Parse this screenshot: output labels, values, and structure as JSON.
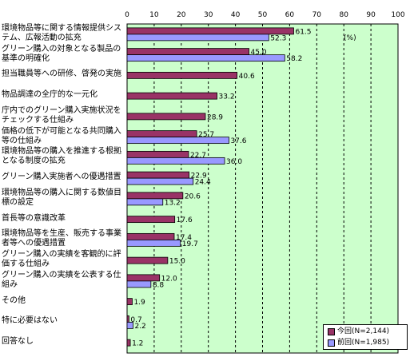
{
  "chart_data": {
    "type": "bar",
    "orientation": "horizontal",
    "unit_label": "(%)",
    "xlim": [
      0,
      100
    ],
    "x_ticks": [
      "0",
      "10",
      "20",
      "30",
      "40",
      "50",
      "60",
      "70",
      "80",
      "90",
      "100"
    ],
    "grid": true,
    "legend_position": "bottom-right",
    "categories": [
      "環境物品等に関する情報提供システム、広報活動の拡充",
      "グリーン購入の対象となる製品の基準の明確化",
      "担当職員等への研修、啓発の実施",
      "物品調達の全庁的な一元化",
      "庁内でのグリーン購入実施状況をチェックする仕組み",
      "価格の低下が可能となる共同購入等の仕組み",
      "環境物品等の購入を推進する根拠となる制度の拡充",
      "グリーン購入実施者への優遇措置",
      "環境物品等の購入に関する数値目標の設定",
      "首長等の意識改革",
      "環境物品等を生産、販売する事業者等への優遇措置",
      "グリーン購入の実績を客観的に評価する仕組み",
      "グリーン購入の実績を公表する仕組み",
      "その他",
      "特に必要はない",
      "回答なし"
    ],
    "series": [
      {
        "name": "今回(N=2,144)",
        "color": "#993366",
        "values": [
          61.5,
          45.0,
          40.6,
          33.2,
          28.9,
          25.7,
          22.7,
          22.9,
          20.6,
          17.6,
          17.4,
          15.0,
          12.0,
          1.9,
          0.7,
          1.2
        ],
        "labels": [
          "61.5",
          "45.0",
          "40.6",
          "33.2",
          "28.9",
          "25.7",
          "22.7",
          "22.9",
          "20.6",
          "17.6",
          "17.4",
          "15.0",
          "12.0",
          "1.9",
          "0.7",
          "1.2"
        ]
      },
      {
        "name": "前回(N=1,985)",
        "color": "#9999ff",
        "values": [
          52.3,
          58.2,
          null,
          null,
          null,
          37.6,
          36.0,
          24.4,
          13.2,
          null,
          19.7,
          null,
          8.8,
          null,
          2.2,
          null
        ],
        "labels": [
          "52.3",
          "58.2",
          "",
          "",
          "",
          "37.6",
          "36.0",
          "24.4",
          "13.2",
          "",
          "19.7",
          "",
          "8.8",
          "",
          "2.2",
          ""
        ]
      }
    ]
  }
}
